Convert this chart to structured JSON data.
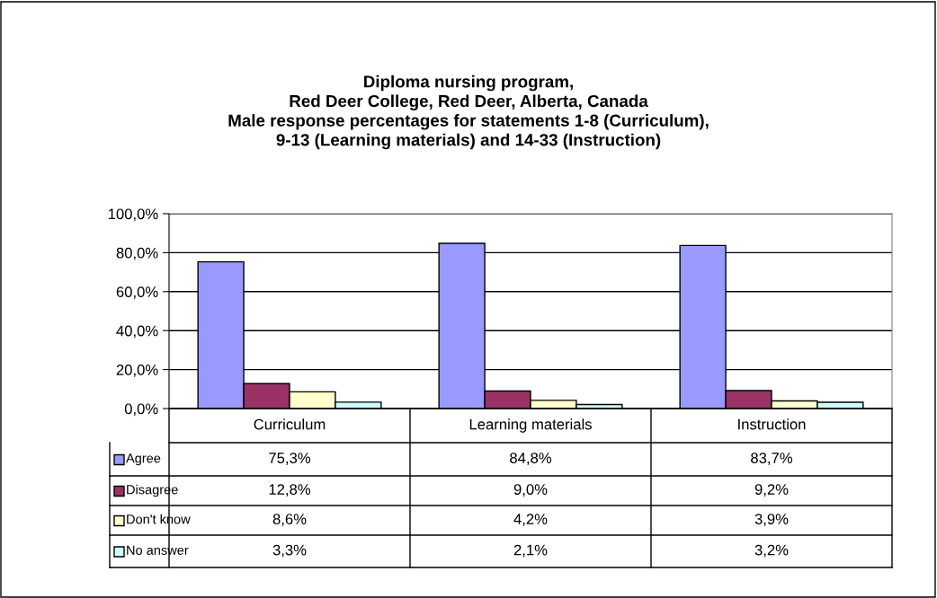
{
  "chart_data": {
    "type": "bar",
    "title": "Diploma nursing program,\nRed Deer College, Red Deer, Alberta, Canada\nMale response percentages for statements 1-8 (Curriculum),\n9-13 (Learning materials) and 14-33 (Instruction)",
    "categories": [
      "Curriculum",
      "Learning materials",
      "Instruction"
    ],
    "series": [
      {
        "name": "Agree",
        "color": "#9999ff",
        "values": [
          75.3,
          84.8,
          83.7
        ],
        "value_labels": [
          "75,3%",
          "84,8%",
          "83,7%"
        ]
      },
      {
        "name": "Disagree",
        "color": "#993366",
        "values": [
          12.8,
          9.0,
          9.2
        ],
        "value_labels": [
          "12,8%",
          "9,0%",
          "9,2%"
        ]
      },
      {
        "name": "Don't know",
        "color": "#ffffcc",
        "values": [
          8.6,
          4.2,
          3.9
        ],
        "value_labels": [
          "8,6%",
          "4,2%",
          "3,9%"
        ]
      },
      {
        "name": "No answer",
        "color": "#ccffff",
        "values": [
          3.3,
          2.1,
          3.2
        ],
        "value_labels": [
          "3,3%",
          "2,1%",
          "3,2%"
        ]
      }
    ],
    "ylim": [
      0,
      100
    ],
    "yticks": [
      {
        "value": 0,
        "label": "0,0%"
      },
      {
        "value": 20,
        "label": "20,0%"
      },
      {
        "value": 40,
        "label": "40,0%"
      },
      {
        "value": 60,
        "label": "60,0%"
      },
      {
        "value": 80,
        "label": "80,0%"
      },
      {
        "value": 100,
        "label": "100,0%"
      }
    ],
    "grid": "y",
    "legend": "bottom"
  }
}
